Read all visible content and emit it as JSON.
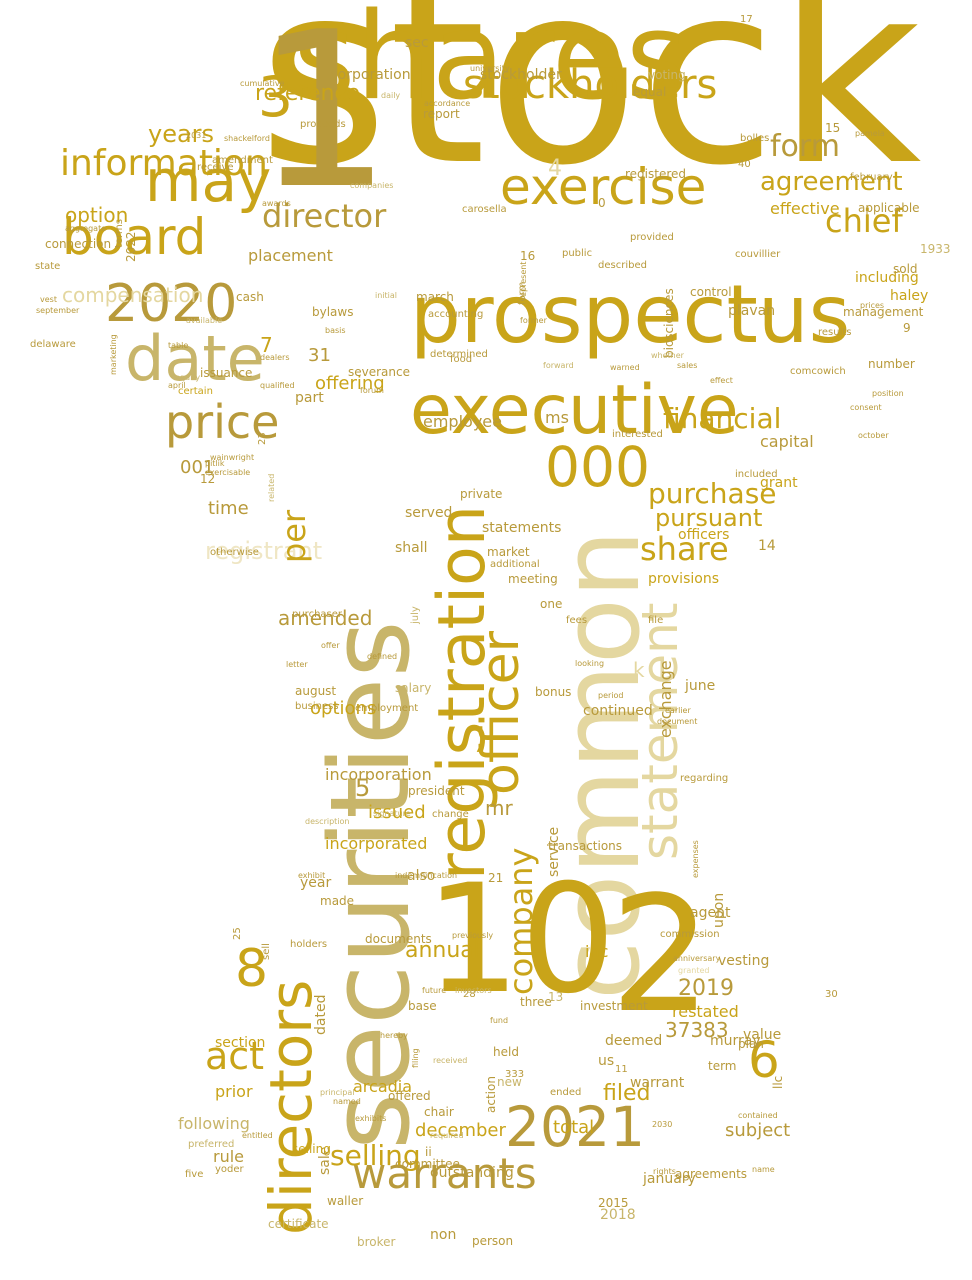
{
  "palette": {
    "gold": "#c9a419",
    "ochre": "#b89a3b",
    "khaki": "#c8b56a",
    "pale": "#e4d7a0",
    "faint": "#efe6c4"
  },
  "words": [
    {
      "text": "stock",
      "color": "gold"
    },
    {
      "text": "shares",
      "color": "gold"
    },
    {
      "text": "securities",
      "color": "khaki"
    },
    {
      "text": "common",
      "color": "pale"
    },
    {
      "text": "prospectus",
      "color": "gold"
    },
    {
      "text": "1",
      "color": "ochre"
    },
    {
      "text": "10",
      "color": "gold"
    },
    {
      "text": "2",
      "color": "gold"
    },
    {
      "text": "registration",
      "color": "gold"
    },
    {
      "text": "executive",
      "color": "gold"
    },
    {
      "text": "exercise",
      "color": "gold"
    },
    {
      "text": "directors",
      "color": "gold"
    },
    {
      "text": "statement",
      "color": "pale"
    },
    {
      "text": "2021",
      "color": "ochre"
    },
    {
      "text": "warrants",
      "color": "ochre"
    },
    {
      "text": "may",
      "color": "gold"
    },
    {
      "text": "date",
      "color": "khaki"
    },
    {
      "text": "board",
      "color": "gold"
    },
    {
      "text": "2020",
      "color": "ochre"
    },
    {
      "text": "officer",
      "color": "gold"
    },
    {
      "text": "3",
      "color": "gold"
    },
    {
      "text": "000",
      "color": "gold"
    },
    {
      "text": "price",
      "color": "ochre"
    },
    {
      "text": "stockholders",
      "color": "gold"
    },
    {
      "text": "information",
      "color": "gold"
    },
    {
      "text": "director",
      "color": "ochre"
    },
    {
      "text": "8",
      "color": "gold"
    },
    {
      "text": "6",
      "color": "gold"
    },
    {
      "text": "act",
      "color": "gold"
    },
    {
      "text": "selling",
      "color": "gold"
    },
    {
      "text": "share",
      "color": "gold"
    },
    {
      "text": "purchase",
      "color": "gold"
    },
    {
      "text": "company",
      "color": "gold"
    },
    {
      "text": "financial",
      "color": "gold"
    },
    {
      "text": "chief",
      "color": "gold"
    },
    {
      "text": "form",
      "color": "ochre"
    },
    {
      "text": "agreement",
      "color": "gold"
    },
    {
      "text": "registrant",
      "color": "faint"
    },
    {
      "text": "per",
      "color": "gold"
    },
    {
      "text": "years",
      "color": "gold"
    },
    {
      "text": "reference",
      "color": "gold"
    },
    {
      "text": "option",
      "color": "gold"
    },
    {
      "text": "compensation",
      "color": "pale"
    },
    {
      "text": "4",
      "color": "pale"
    },
    {
      "text": "pursuant",
      "color": "gold"
    },
    {
      "text": "annual",
      "color": "gold"
    },
    {
      "text": "amended",
      "color": "ochre"
    },
    {
      "text": "2019",
      "color": "ochre"
    },
    {
      "text": "filed",
      "color": "gold"
    },
    {
      "text": "mr",
      "color": "ochre"
    },
    {
      "text": "37383",
      "color": "ochre"
    },
    {
      "text": "december",
      "color": "gold"
    },
    {
      "text": "offering",
      "color": "gold"
    },
    {
      "text": "effective",
      "color": "gold"
    },
    {
      "text": "5",
      "color": "ochre"
    },
    {
      "text": "7",
      "color": "gold"
    },
    {
      "text": "31",
      "color": "ochre"
    },
    {
      "text": "001",
      "color": "ochre"
    },
    {
      "text": "time",
      "color": "ochre"
    },
    {
      "text": "ms",
      "color": "ochre"
    },
    {
      "text": "employee",
      "color": "ochre"
    },
    {
      "text": "capital",
      "color": "ochre"
    },
    {
      "text": "placement",
      "color": "ochre"
    },
    {
      "text": "options",
      "color": "gold"
    },
    {
      "text": "statements",
      "color": "ochre"
    },
    {
      "text": "issued",
      "color": "gold"
    },
    {
      "text": "incorporated",
      "color": "gold"
    },
    {
      "text": "incorporation",
      "color": "ochre"
    },
    {
      "text": "following",
      "color": "khaki"
    },
    {
      "text": "rule",
      "color": "ochre"
    },
    {
      "text": "subject",
      "color": "ochre"
    },
    {
      "text": "restated",
      "color": "gold"
    },
    {
      "text": "total",
      "color": "gold"
    },
    {
      "text": "arcadia",
      "color": "gold"
    },
    {
      "text": "section",
      "color": "gold"
    },
    {
      "text": "k",
      "color": "pale"
    },
    {
      "text": "exchange",
      "color": "ochre"
    },
    {
      "text": "officers",
      "color": "gold"
    },
    {
      "text": "provisions",
      "color": "gold"
    },
    {
      "text": "inc",
      "color": "gold"
    },
    {
      "text": "sec",
      "color": "ochre"
    },
    {
      "text": "stockholder",
      "color": "ochre"
    },
    {
      "text": "corporation",
      "color": "ochre"
    },
    {
      "text": "prior",
      "color": "gold"
    },
    {
      "text": "warrant",
      "color": "ochre"
    },
    {
      "text": "deemed",
      "color": "ochre"
    },
    {
      "text": "us",
      "color": "ochre"
    },
    {
      "text": "value",
      "color": "ochre"
    },
    {
      "text": "murray",
      "color": "ochre"
    },
    {
      "text": "llc",
      "color": "ochre"
    },
    {
      "text": "january",
      "color": "ochre"
    },
    {
      "text": "2018",
      "color": "khaki"
    },
    {
      "text": "outstanding",
      "color": "ochre"
    },
    {
      "text": "non",
      "color": "ochre"
    },
    {
      "text": "sale",
      "color": "ochre"
    },
    {
      "text": "dated",
      "color": "ochre"
    },
    {
      "text": "year",
      "color": "ochre"
    },
    {
      "text": "made",
      "color": "ochre"
    },
    {
      "text": "documents",
      "color": "ochre"
    },
    {
      "text": "also",
      "color": "ochre"
    },
    {
      "text": "upon",
      "color": "ochre"
    },
    {
      "text": "agent",
      "color": "ochre"
    },
    {
      "text": "vesting",
      "color": "ochre"
    },
    {
      "text": "14",
      "color": "ochre"
    },
    {
      "text": "haley",
      "color": "gold"
    },
    {
      "text": "including",
      "color": "gold"
    },
    {
      "text": "applicable",
      "color": "ochre"
    },
    {
      "text": "plavan",
      "color": "ochre"
    },
    {
      "text": "management",
      "color": "ochre"
    },
    {
      "text": "number",
      "color": "ochre"
    },
    {
      "text": "control",
      "color": "ochre"
    },
    {
      "text": "biosciences",
      "color": "ochre"
    },
    {
      "text": "june",
      "color": "ochre"
    },
    {
      "text": "continued",
      "color": "ochre"
    },
    {
      "text": "salary",
      "color": "khaki"
    },
    {
      "text": "bonus",
      "color": "ochre"
    },
    {
      "text": "president",
      "color": "ochre"
    },
    {
      "text": "service",
      "color": "ochre"
    },
    {
      "text": "transactions",
      "color": "ochre"
    },
    {
      "text": "part",
      "color": "ochre"
    },
    {
      "text": "shall",
      "color": "ochre"
    },
    {
      "text": "market",
      "color": "ochre"
    },
    {
      "text": "private",
      "color": "ochre"
    },
    {
      "text": "grant",
      "color": "gold"
    },
    {
      "text": "meeting",
      "color": "ochre"
    },
    {
      "text": "one",
      "color": "ochre"
    },
    {
      "text": "served",
      "color": "ochre"
    },
    {
      "text": "report",
      "color": "ochre"
    },
    {
      "text": "equal",
      "color": "ochre"
    },
    {
      "text": "voting",
      "color": "khaki"
    },
    {
      "text": "registered",
      "color": "ochre"
    },
    {
      "text": "bylaws",
      "color": "ochre"
    },
    {
      "text": "march",
      "color": "ochre"
    },
    {
      "text": "2022",
      "color": "ochre"
    },
    {
      "text": "connection",
      "color": "ochre"
    },
    {
      "text": "severance",
      "color": "ochre"
    },
    {
      "text": "selling",
      "color": "gold"
    },
    {
      "text": "investment",
      "color": "ochre"
    },
    {
      "text": "three",
      "color": "ochre"
    },
    {
      "text": "base",
      "color": "ochre"
    },
    {
      "text": "plan",
      "color": "ochre"
    },
    {
      "text": "term",
      "color": "ochre"
    },
    {
      "text": "certificate",
      "color": "khaki"
    },
    {
      "text": "broker",
      "color": "khaki"
    },
    {
      "text": "person",
      "color": "ochre"
    },
    {
      "text": "waller",
      "color": "ochre"
    },
    {
      "text": "committee",
      "color": "ochre"
    },
    {
      "text": "2015",
      "color": "ochre"
    },
    {
      "text": "agreements",
      "color": "ochre"
    },
    {
      "text": "ii",
      "color": "ochre"
    },
    {
      "text": "chair",
      "color": "ochre"
    },
    {
      "text": "offered",
      "color": "ochre"
    },
    {
      "text": "held",
      "color": "ochre"
    },
    {
      "text": "new",
      "color": "khaki"
    },
    {
      "text": "action",
      "color": "ochre"
    },
    {
      "text": "august",
      "color": "ochre"
    },
    {
      "text": "issuance",
      "color": "ochre"
    },
    {
      "text": "cash",
      "color": "ochre"
    },
    {
      "text": "15",
      "color": "ochre"
    },
    {
      "text": "0",
      "color": "ochre"
    },
    {
      "text": "16",
      "color": "ochre"
    },
    {
      "text": "9",
      "color": "ochre"
    },
    {
      "text": "21",
      "color": "ochre"
    },
    {
      "text": "12",
      "color": "ochre"
    },
    {
      "text": "1933",
      "color": "khaki"
    },
    {
      "text": "sold",
      "color": "ochre"
    },
    {
      "text": "receive",
      "color": "ochre"
    },
    {
      "text": "amendment",
      "color": "ochre"
    },
    {
      "text": "proceeds",
      "color": "ochre"
    },
    {
      "text": "carosella",
      "color": "ochre"
    },
    {
      "text": "public",
      "color": "ochre"
    },
    {
      "text": "accounting",
      "color": "ochre"
    },
    {
      "text": "food",
      "color": "ochre"
    },
    {
      "text": "bolles",
      "color": "ochre"
    },
    {
      "text": "comcowich",
      "color": "ochre"
    },
    {
      "text": "additional",
      "color": "ochre"
    },
    {
      "text": "state",
      "color": "ochre"
    },
    {
      "text": "delaware",
      "color": "ochre"
    },
    {
      "text": "university",
      "color": "ochre"
    },
    {
      "text": "february",
      "color": "ochre"
    },
    {
      "text": "yoder",
      "color": "ochre"
    },
    {
      "text": "preferred",
      "color": "khaki"
    },
    {
      "text": "five",
      "color": "ochre"
    },
    {
      "text": "holders",
      "color": "ochre"
    },
    {
      "text": "sell",
      "color": "ochre"
    },
    {
      "text": "commission",
      "color": "ochre"
    },
    {
      "text": "letter",
      "color": "ochre"
    },
    {
      "text": "purchaser",
      "color": "ochre"
    },
    {
      "text": "business",
      "color": "ochre"
    },
    {
      "text": "july",
      "color": "khaki"
    },
    {
      "text": "exercisable",
      "color": "ochre"
    },
    {
      "text": "pitlik",
      "color": "ochre"
    },
    {
      "text": "wainwright",
      "color": "ochre"
    },
    {
      "text": "terms",
      "color": "ochre"
    },
    {
      "text": "aggregate",
      "color": "ochre"
    },
    {
      "text": "form",
      "color": "ochre"
    },
    {
      "text": "former",
      "color": "ochre"
    },
    {
      "text": "determined",
      "color": "ochre"
    },
    {
      "text": "interested",
      "color": "ochre"
    },
    {
      "text": "included",
      "color": "ochre"
    },
    {
      "text": "described",
      "color": "ochre"
    },
    {
      "text": "provided",
      "color": "ochre"
    },
    {
      "text": "results",
      "color": "ochre"
    },
    {
      "text": "prices",
      "color": "ochre"
    },
    {
      "text": "regarding",
      "color": "ochre"
    },
    {
      "text": "employment",
      "color": "ochre"
    },
    {
      "text": "period",
      "color": "ochre"
    },
    {
      "text": "file",
      "color": "ochre"
    },
    {
      "text": "fees",
      "color": "ochre"
    },
    {
      "text": "change",
      "color": "ochre"
    },
    {
      "text": "333",
      "color": "ochre"
    },
    {
      "text": "ended",
      "color": "ochre"
    },
    {
      "text": "28",
      "color": "ochre"
    },
    {
      "text": "11",
      "color": "ochre"
    },
    {
      "text": "13",
      "color": "khaki"
    },
    {
      "text": "23",
      "color": "ochre"
    },
    {
      "text": "25",
      "color": "ochre"
    },
    {
      "text": "30",
      "color": "ochre"
    },
    {
      "text": "40",
      "color": "ochre"
    },
    {
      "text": "17",
      "color": "ochre"
    },
    {
      "text": "table",
      "color": "ochre"
    },
    {
      "text": "equity",
      "color": "khaki"
    },
    {
      "text": "certain",
      "color": "gold"
    },
    {
      "text": "qualified",
      "color": "ochre"
    },
    {
      "text": "april",
      "color": "ochre"
    },
    {
      "text": "september",
      "color": "ochre"
    },
    {
      "text": "vest",
      "color": "ochre"
    },
    {
      "text": "dealers",
      "color": "ochre"
    },
    {
      "text": "related",
      "color": "khaki"
    },
    {
      "text": "otherwise",
      "color": "ochre"
    },
    {
      "text": "offer",
      "color": "ochre"
    },
    {
      "text": "defined",
      "color": "ochre"
    },
    {
      "text": "principal",
      "color": "khaki"
    },
    {
      "text": "named",
      "color": "ochre"
    },
    {
      "text": "entitled",
      "color": "ochre"
    },
    {
      "text": "exhibits",
      "color": "ochre"
    },
    {
      "text": "hereby",
      "color": "ochre"
    },
    {
      "text": "filing",
      "color": "ochre"
    },
    {
      "text": "received",
      "color": "khaki"
    },
    {
      "text": "required",
      "color": "khaki"
    },
    {
      "text": "2030",
      "color": "ochre"
    },
    {
      "text": "contained",
      "color": "ochre"
    },
    {
      "text": "name",
      "color": "ochre"
    },
    {
      "text": "rights",
      "color": "ochre"
    },
    {
      "text": "exhibit",
      "color": "ochre"
    },
    {
      "text": "amounts",
      "color": "khaki"
    },
    {
      "text": "previously",
      "color": "ochre"
    },
    {
      "text": "future",
      "color": "ochre"
    },
    {
      "text": "investors",
      "color": "khaki"
    },
    {
      "text": "fund",
      "color": "ochre"
    },
    {
      "text": "looking",
      "color": "ochre"
    },
    {
      "text": "document",
      "color": "ochre"
    },
    {
      "text": "earlier",
      "color": "ochre"
    },
    {
      "text": "anniversary",
      "color": "ochre"
    },
    {
      "text": "granted",
      "color": "pale"
    },
    {
      "text": "expenses",
      "color": "ochre"
    },
    {
      "text": "forward",
      "color": "khaki"
    },
    {
      "text": "warned",
      "color": "ochre"
    },
    {
      "text": "whether",
      "color": "khaki"
    },
    {
      "text": "sales",
      "color": "ochre"
    },
    {
      "text": "effect",
      "color": "ochre"
    },
    {
      "text": "consent",
      "color": "ochre"
    },
    {
      "text": "october",
      "color": "ochre"
    },
    {
      "text": "position",
      "color": "ochre"
    },
    {
      "text": "basis",
      "color": "ochre"
    },
    {
      "text": "initial",
      "color": "khaki"
    },
    {
      "text": "represent",
      "color": "ochre"
    },
    {
      "text": "marketing",
      "color": "ochre"
    },
    {
      "text": "forum",
      "color": "ochre"
    },
    {
      "text": "description",
      "color": "khaki"
    },
    {
      "text": "signature",
      "color": "khaki"
    },
    {
      "text": "cumulative",
      "color": "ochre"
    },
    {
      "text": "daily",
      "color": "khaki"
    },
    {
      "text": "accordance",
      "color": "ochre"
    },
    {
      "text": "shackelford",
      "color": "ochre"
    },
    {
      "text": "2031",
      "color": "ochre"
    },
    {
      "text": "pamela",
      "color": "ochre"
    },
    {
      "text": "couvillier",
      "color": "ochre"
    },
    {
      "text": "awards",
      "color": "ochre"
    },
    {
      "text": "companies",
      "color": "khaki"
    },
    {
      "text": "available",
      "color": "khaki"
    },
    {
      "text": "indemnification",
      "color": "ochre"
    },
    {
      "text": "believe",
      "color": "ochre"
    },
    {
      "text": "distribution",
      "color": "ochre"
    },
    {
      "text": "accelerated",
      "color": "khaki"
    },
    {
      "text": "opportunities",
      "color": "khaki"
    }
  ]
}
